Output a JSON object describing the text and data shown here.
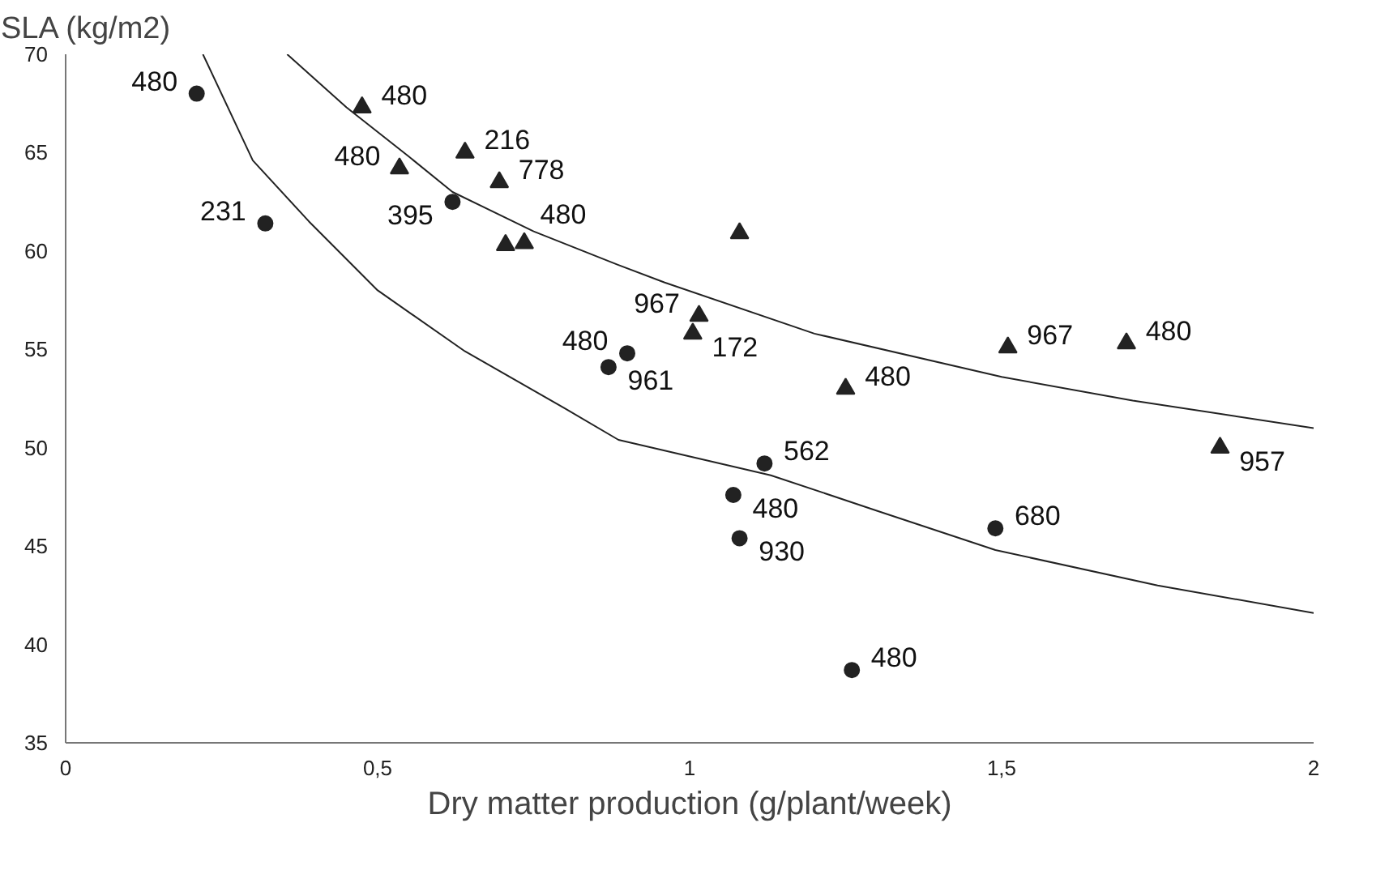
{
  "chart_data": {
    "type": "scatter",
    "xlabel": "Dry matter production (g/plant/week)",
    "ylabel": "SLA (kg/m2)",
    "xlim": [
      0,
      2
    ],
    "ylim": [
      35,
      70
    ],
    "xticks": [
      0,
      {
        "value": 0.5,
        "label": "0,5"
      },
      1,
      {
        "value": 1.5,
        "label": "1,5"
      },
      2
    ],
    "yticks": [
      35,
      40,
      45,
      50,
      55,
      60,
      65,
      70
    ],
    "grid": false,
    "series": [
      {
        "marker": "circle",
        "color": "#222222",
        "x": [
          0.21,
          0.32,
          0.62,
          0.87,
          0.9,
          1.12,
          1.07,
          1.08,
          1.49,
          1.26
        ],
        "values": [
          68.0,
          61.4,
          62.5,
          54.1,
          54.8,
          49.2,
          47.6,
          45.4,
          45.9,
          38.7
        ]
      },
      {
        "marker": "triangle",
        "color": "#222222",
        "x": [
          0.475,
          0.535,
          0.64,
          0.695,
          0.705,
          0.735,
          1.08,
          1.015,
          1.005,
          1.25,
          1.51,
          1.7,
          1.85
        ],
        "values": [
          67.3,
          64.2,
          65.0,
          63.5,
          60.3,
          60.4,
          60.9,
          56.7,
          55.8,
          53.0,
          55.1,
          55.3,
          50.0
        ]
      },
      {
        "type": "line",
        "color": "#222222",
        "x": [
          0.22,
          0.3,
          0.39,
          0.5,
          0.64,
          0.8,
          0.886,
          1.13,
          1.3,
          1.49,
          1.75,
          2.0
        ],
        "values": [
          70,
          64.6,
          61.5,
          58.0,
          54.9,
          52.0,
          50.4,
          48.6,
          46.8,
          44.8,
          43.0,
          41.6
        ]
      },
      {
        "type": "line",
        "color": "#222222",
        "x": [
          0.355,
          0.45,
          0.55,
          0.62,
          0.75,
          0.885,
          0.96,
          1.2,
          1.5,
          1.71,
          2.0
        ],
        "values": [
          70,
          67.3,
          64.8,
          63.0,
          61.0,
          59.3,
          58.4,
          55.8,
          53.6,
          52.4,
          51.0
        ]
      }
    ],
    "annotations": [
      {
        "text": "480",
        "x": 0.21,
        "y": 68.0
      },
      {
        "text": "231",
        "x": 0.32,
        "y": 61.4
      },
      {
        "text": "395",
        "x": 0.62,
        "y": 62.5
      },
      {
        "text": "961",
        "x": 0.87,
        "y": 54.1
      },
      {
        "text": "480",
        "x": 0.9,
        "y": 54.8
      },
      {
        "text": "562",
        "x": 1.12,
        "y": 49.2
      },
      {
        "text": "480",
        "x": 1.07,
        "y": 47.6
      },
      {
        "text": "930",
        "x": 1.08,
        "y": 45.4
      },
      {
        "text": "680",
        "x": 1.49,
        "y": 45.9
      },
      {
        "text": "480",
        "x": 1.26,
        "y": 38.7
      },
      {
        "text": "480",
        "x": 0.475,
        "y": 67.3
      },
      {
        "text": "480",
        "x": 0.535,
        "y": 64.2
      },
      {
        "text": "216",
        "x": 0.64,
        "y": 65.0
      },
      {
        "text": "778",
        "x": 0.695,
        "y": 63.5
      },
      {
        "text": "480",
        "x": 0.735,
        "y": 60.4
      },
      {
        "text": "967",
        "x": 1.015,
        "y": 56.7
      },
      {
        "text": "172",
        "x": 1.005,
        "y": 55.8
      },
      {
        "text": "480",
        "x": 1.25,
        "y": 53.0
      },
      {
        "text": "967",
        "x": 1.51,
        "y": 55.1
      },
      {
        "text": "480",
        "x": 1.7,
        "y": 55.3
      },
      {
        "text": "957",
        "x": 1.85,
        "y": 50.0
      }
    ]
  }
}
